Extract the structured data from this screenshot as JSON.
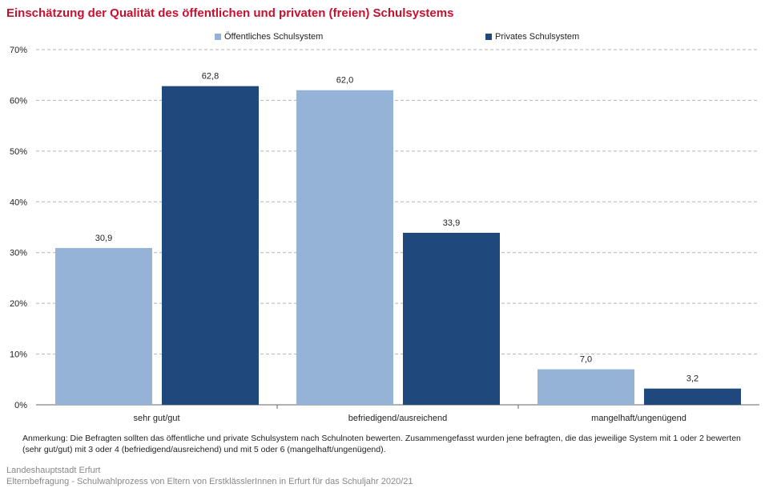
{
  "title": "Einschätzung der Qualität des öffentlichen und privaten (freien) Schulsystems",
  "chart_data": {
    "type": "bar",
    "categories": [
      "sehr gut/gut",
      "befriedigend/ausreichend",
      "mangelhaft/ungenügend"
    ],
    "series": [
      {
        "name": "Öffentliches Schulsystem",
        "values": [
          30.9,
          62.0,
          7.0
        ],
        "labels": [
          "30,9",
          "62,0",
          "7,0"
        ],
        "color": "#95b3d7"
      },
      {
        "name": "Privates Schulsystem",
        "values": [
          62.8,
          33.9,
          3.2
        ],
        "labels": [
          "62,8",
          "33,9",
          "3,2"
        ],
        "color": "#1f497d"
      }
    ],
    "ylim": [
      0,
      70
    ],
    "yticks": [
      0,
      10,
      20,
      30,
      40,
      50,
      60,
      70
    ],
    "ytick_labels": [
      "0%",
      "10%",
      "20%",
      "30%",
      "40%",
      "50%",
      "60%",
      "70%"
    ],
    "grid": true,
    "legend_position": "top-center"
  },
  "note": "Anmerkung: Die Befragten sollten das öffentliche und private Schulsystem nach Schulnoten bewerten. Zusammengefasst wurden jene befragten, die das jeweilige System mit 1 oder 2 bewerten (sehr gut/gut) mit 3 oder 4 (befriedigend/ausreichend) und mit 5 oder 6 (mangelhaft/ungenügend).",
  "footer": {
    "line1": "Landeshauptstadt Erfurt",
    "line2": "Elternbefragung - Schulwahlprozess von Eltern von ErstklässlerInnen in Erfurt für das Schuljahr 2020/21"
  }
}
